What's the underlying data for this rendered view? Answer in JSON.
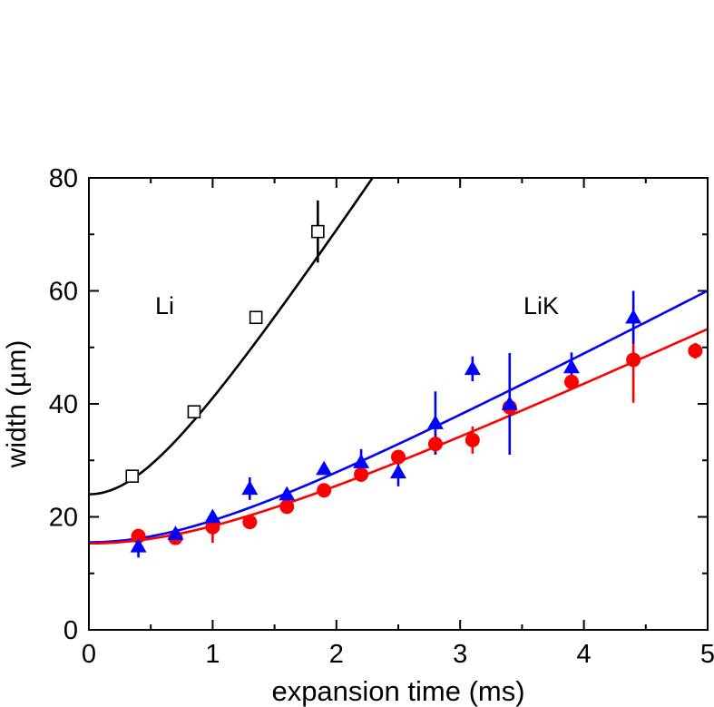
{
  "chart_data": {
    "type": "scatter",
    "title": "",
    "xlabel": "expansion time (ms)",
    "ylabel": "width (µm)",
    "xlim": [
      0,
      5
    ],
    "ylim": [
      0,
      80
    ],
    "xticks": [
      0,
      1,
      2,
      3,
      4,
      5
    ],
    "yticks": [
      0,
      20,
      40,
      60,
      80
    ],
    "x_minor_ticks": [
      0.5,
      1.5,
      2.5,
      3.5,
      4.5
    ],
    "y_minor_ticks": [
      10,
      30,
      50,
      70
    ],
    "grid": false,
    "annotations": [
      "Li",
      "LiK"
    ],
    "series": [
      {
        "marker": "open-square",
        "color": "#000000",
        "points": [
          {
            "x": 0.35,
            "y": 27.2,
            "err": 0.8
          },
          {
            "x": 0.85,
            "y": 38.6,
            "err": 0.8
          },
          {
            "x": 1.35,
            "y": 55.3,
            "err": 1.0
          },
          {
            "x": 1.85,
            "y": 70.5,
            "err": 5.5
          }
        ]
      },
      {
        "marker": "filled-circle",
        "color": "#ff0000",
        "points": [
          {
            "x": 0.4,
            "y": 16.6,
            "err": 0.8
          },
          {
            "x": 0.7,
            "y": 16.3,
            "err": 0.8
          },
          {
            "x": 1.0,
            "y": 18.2,
            "err": 2.8
          },
          {
            "x": 1.3,
            "y": 19.1,
            "err": 0.8
          },
          {
            "x": 1.6,
            "y": 21.8,
            "err": 0.8
          },
          {
            "x": 1.9,
            "y": 24.7,
            "err": 0.8
          },
          {
            "x": 2.2,
            "y": 27.5,
            "err": 0.8
          },
          {
            "x": 2.5,
            "y": 30.6,
            "err": 0.8
          },
          {
            "x": 2.8,
            "y": 32.9,
            "err": 1.8
          },
          {
            "x": 3.1,
            "y": 33.6,
            "err": 2.4
          },
          {
            "x": 3.4,
            "y": 39.4,
            "err": 1.3
          },
          {
            "x": 3.9,
            "y": 43.9,
            "err": 1.0
          },
          {
            "x": 4.4,
            "y": 47.8,
            "err": 7.6
          },
          {
            "x": 4.9,
            "y": 49.4,
            "err": 1.4
          }
        ]
      },
      {
        "marker": "filled-triangle",
        "color": "#0000ff",
        "points": [
          {
            "x": 0.4,
            "y": 14.8,
            "err": 2.0
          },
          {
            "x": 0.7,
            "y": 17.0,
            "err": 0.8
          },
          {
            "x": 1.0,
            "y": 20.0,
            "err": 0.8
          },
          {
            "x": 1.3,
            "y": 25.0,
            "err": 2.0
          },
          {
            "x": 1.6,
            "y": 24.0,
            "err": 0.8
          },
          {
            "x": 1.9,
            "y": 28.5,
            "err": 0.8
          },
          {
            "x": 2.2,
            "y": 29.7,
            "err": 2.3
          },
          {
            "x": 2.5,
            "y": 27.9,
            "err": 2.5
          },
          {
            "x": 2.8,
            "y": 36.6,
            "err": 5.6
          },
          {
            "x": 3.1,
            "y": 46.2,
            "err": 2.2
          },
          {
            "x": 3.4,
            "y": 40.0,
            "err": 9.0
          },
          {
            "x": 3.9,
            "y": 46.5,
            "err": 2.6
          },
          {
            "x": 4.4,
            "y": 55.3,
            "err": 4.7
          }
        ]
      }
    ],
    "fits": [
      {
        "color": "#000000",
        "sigma0": 24.0,
        "v": 33.3
      },
      {
        "color": "#0000ff",
        "sigma0": 15.5,
        "v": 11.6
      },
      {
        "color": "#ff0000",
        "sigma0": 15.3,
        "v": 10.2
      }
    ]
  }
}
